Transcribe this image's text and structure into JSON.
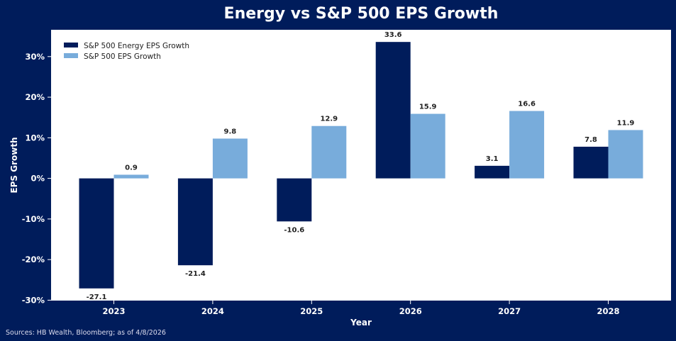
{
  "colors": {
    "background": "#001c5b",
    "energy": "#001c5b",
    "sp500": "#78acdb",
    "plot_bg": "#ffffff"
  },
  "chart_data": {
    "type": "bar",
    "title": "Energy vs S&P 500 EPS Growth",
    "xlabel": "Year",
    "ylabel": "EPS Growth",
    "categories": [
      "2023",
      "2024",
      "2025",
      "2026",
      "2027",
      "2028"
    ],
    "series": [
      {
        "name": "S&P 500 Energy EPS Growth",
        "values": [
          -27.1,
          -21.4,
          -10.6,
          33.6,
          3.1,
          7.8
        ]
      },
      {
        "name": "S&P 500 EPS Growth",
        "values": [
          0.9,
          9.8,
          12.9,
          15.9,
          16.6,
          11.9
        ]
      }
    ],
    "yticks": [
      -30,
      -20,
      -10,
      0,
      10,
      20,
      30
    ],
    "ytick_labels": [
      "-30%",
      "-20%",
      "-10%",
      "0%",
      "10%",
      "20%",
      "30%"
    ],
    "ylim": [
      -30.1,
      36.6
    ],
    "grid": false,
    "legend_position": "top-left"
  },
  "footer": {
    "source": "Sources: HB Wealth, Bloomberg; as of 4/8/2026"
  }
}
